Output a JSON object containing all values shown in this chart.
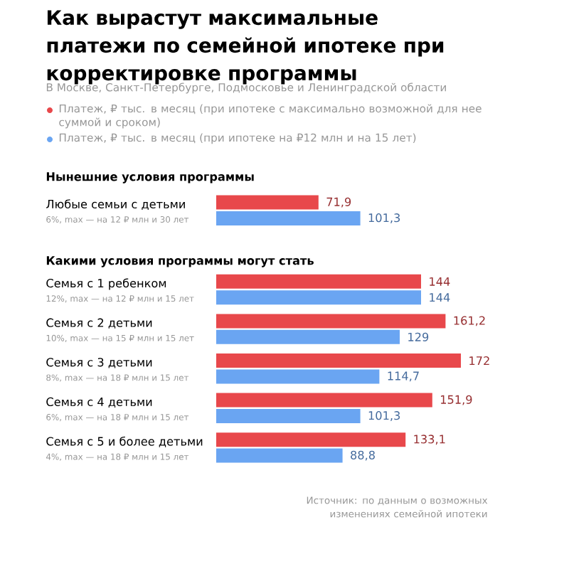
{
  "chart_data": {
    "type": "bar",
    "orientation": "horizontal",
    "title": "Как вырастут максимальные платежи по семейной ипотеке при корректировке программы",
    "subtitle": "В Москве, Санкт-Петербурге, Подмосковье и Ленинградской области",
    "categories": [
      "Любые семьи с детьми",
      "Семья с 1 ребенком",
      "Семья с 2 детьми",
      "Семья с 3 детьми",
      "Семья с 4 детьми",
      "Семья с 5 и более детьми"
    ],
    "series": [
      {
        "name": "Платеж, ₽ тыс. в месяц (при ипотеке с максимально возможной для нее суммой и сроком)",
        "color": "#e8484b",
        "values": [
          71.9,
          144,
          161.2,
          172,
          151.9,
          133.1
        ],
        "value_labels": [
          "71,9",
          "144",
          "161,2",
          "172",
          "151,9",
          "133,1"
        ]
      },
      {
        "name": "Платеж, ₽ тыс. в месяц (при ипотеке на ₽12 млн и на 15 лет)",
        "color": "#6aa5f2",
        "values": [
          101.3,
          144,
          129,
          114.7,
          101.3,
          88.8
        ],
        "value_labels": [
          "101,3",
          "144",
          "129",
          "114,7",
          "101,3",
          "88,8"
        ]
      }
    ],
    "annotations": [
      "Нынешние условия программы",
      "6%, max — на 12 ₽ млн и 30 лет",
      "12%, max — на 12 ₽ млн и 15 лет",
      "10%, max — на 15 ₽ млн и 15 лет",
      "8%, max — на 18 ₽ млн и 15 лет",
      "6%, max — на 18 ₽ млн и 15 лет",
      "4%, max — на 18 ₽ млн и 15 лет",
      "Какими условия программы могут стать",
      "Источник: по данным о возможных изменениях семейной ипотеки"
    ],
    "legend": "top left",
    "tick_labels": "y"
  }
}
